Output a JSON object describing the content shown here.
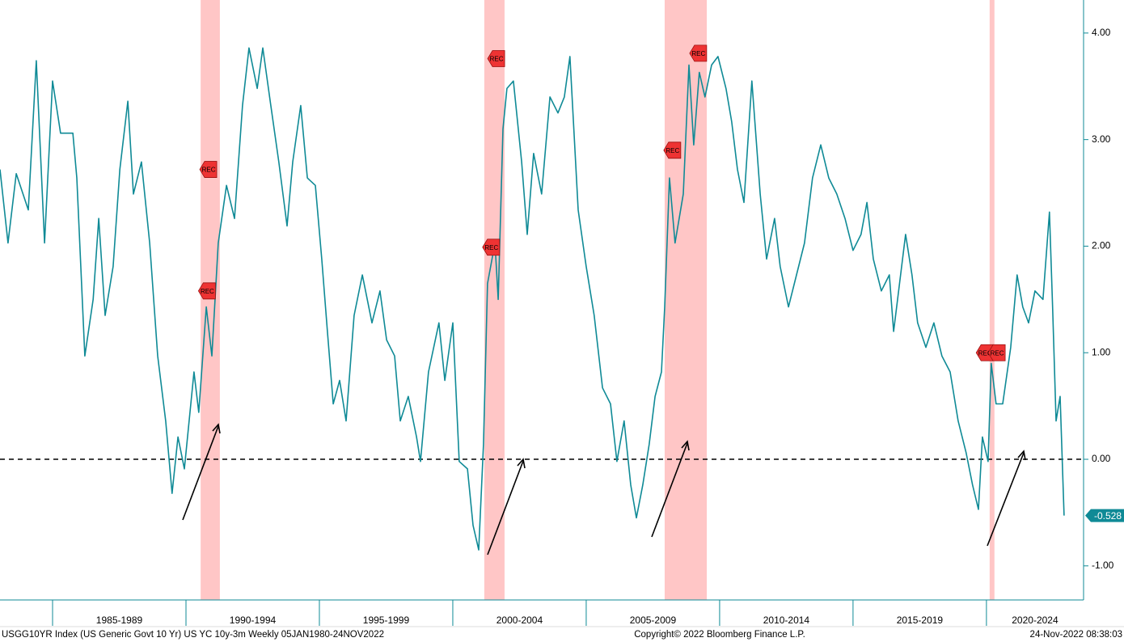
{
  "chart_data": {
    "type": "line",
    "footer_left": "USGG10YR Index (US Generic Govt 10 Yr) US YC 10y-3m  Weekly 05JAN1980-24NOV2022",
    "footer_center": "Copyright© 2022 Bloomberg Finance L.P.",
    "footer_right": "24-Nov-2022 08:38:03",
    "color": "#0f8a96",
    "x": [
      1983.03,
      1983.33,
      1983.64,
      1984.09,
      1984.39,
      1984.7,
      1985.0,
      1985.3,
      1985.76,
      1985.91,
      1986.21,
      1986.52,
      1986.73,
      1986.97,
      1987.27,
      1987.52,
      1987.82,
      1988.03,
      1988.33,
      1988.64,
      1988.94,
      1989.24,
      1989.48,
      1989.7,
      1989.94,
      1990.3,
      1990.48,
      1990.76,
      1990.97,
      1991.21,
      1991.52,
      1991.82,
      1992.12,
      1992.36,
      1992.67,
      1992.88,
      1993.18,
      1993.48,
      1993.79,
      1994.0,
      1994.3,
      1994.55,
      1994.85,
      1995.09,
      1995.3,
      1995.52,
      1995.76,
      1996.0,
      1996.3,
      1996.61,
      1996.97,
      1997.27,
      1997.52,
      1997.82,
      1998.03,
      1998.33,
      1998.64,
      1998.79,
      1999.09,
      1999.48,
      1999.7,
      2000.0,
      2000.24,
      2000.55,
      2000.76,
      2000.97,
      2001.15,
      2001.3,
      2001.58,
      2001.7,
      2001.88,
      2002.03,
      2002.27,
      2002.58,
      2002.79,
      2003.03,
      2003.33,
      2003.64,
      2003.94,
      2004.18,
      2004.39,
      2004.7,
      2005.0,
      2005.3,
      2005.61,
      2005.91,
      2006.15,
      2006.42,
      2006.67,
      2006.88,
      2007.12,
      2007.36,
      2007.58,
      2007.82,
      2007.94,
      2008.12,
      2008.33,
      2008.64,
      2008.85,
      2009.03,
      2009.24,
      2009.45,
      2009.7,
      2009.94,
      2010.24,
      2010.45,
      2010.67,
      2010.91,
      2011.21,
      2011.52,
      2011.76,
      2012.06,
      2012.27,
      2012.58,
      2012.88,
      2013.18,
      2013.48,
      2013.79,
      2014.09,
      2014.39,
      2014.7,
      2015.0,
      2015.3,
      2015.52,
      2015.76,
      2016.06,
      2016.36,
      2016.52,
      2016.67,
      2016.97,
      2017.21,
      2017.42,
      2017.73,
      2018.03,
      2018.33,
      2018.64,
      2018.94,
      2019.24,
      2019.48,
      2019.7,
      2019.85,
      2020.06,
      2020.18,
      2020.36,
      2020.61,
      2020.91,
      2021.15,
      2021.36,
      2021.58,
      2021.82,
      2022.12,
      2022.36,
      2022.48,
      2022.61,
      2022.76,
      2022.91
    ],
    "values": [
      2.72,
      2.03,
      2.68,
      2.34,
      3.74,
      2.03,
      3.55,
      3.06,
      3.06,
      2.64,
      0.97,
      1.5,
      2.26,
      1.35,
      1.81,
      2.72,
      3.36,
      2.49,
      2.79,
      2.03,
      0.97,
      0.36,
      -0.32,
      0.21,
      -0.09,
      0.82,
      0.44,
      1.43,
      0.97,
      2.03,
      2.57,
      2.26,
      3.32,
      3.86,
      3.48,
      3.86,
      3.32,
      2.79,
      2.19,
      2.79,
      3.32,
      2.64,
      2.57,
      1.88,
      1.2,
      0.52,
      0.74,
      0.36,
      1.35,
      1.73,
      1.28,
      1.58,
      1.12,
      0.97,
      0.36,
      0.59,
      0.21,
      -0.02,
      0.82,
      1.28,
      0.74,
      1.28,
      -0.02,
      -0.09,
      -0.62,
      -0.85,
      0.14,
      1.65,
      2.03,
      1.5,
      3.1,
      3.48,
      3.55,
      2.79,
      2.11,
      2.87,
      2.49,
      3.4,
      3.25,
      3.4,
      3.78,
      2.34,
      1.81,
      1.35,
      0.67,
      0.52,
      -0.02,
      0.36,
      -0.24,
      -0.55,
      -0.24,
      0.14,
      0.59,
      0.82,
      1.43,
      2.64,
      2.03,
      2.49,
      3.7,
      2.95,
      3.63,
      3.4,
      3.7,
      3.78,
      3.48,
      3.17,
      2.72,
      2.41,
      3.55,
      2.49,
      1.88,
      2.26,
      1.81,
      1.43,
      1.73,
      2.03,
      2.64,
      2.95,
      2.64,
      2.49,
      2.26,
      1.96,
      2.11,
      2.41,
      1.88,
      1.58,
      1.73,
      1.2,
      1.5,
      2.11,
      1.73,
      1.28,
      1.05,
      1.28,
      0.97,
      0.82,
      0.36,
      0.06,
      -0.24,
      -0.47,
      0.21,
      -0.02,
      0.9,
      0.52,
      0.52,
      1.05,
      1.73,
      1.43,
      1.28,
      1.58,
      1.5,
      2.32,
      1.43,
      0.36,
      0.59,
      -0.528
    ],
    "xlim": [
      1983.03,
      2023.64
    ],
    "xticks": [
      1985,
      1990,
      1995,
      2000,
      2005,
      2010,
      2015,
      2020
    ],
    "period_labels": [
      {
        "label": "1985-1989",
        "start": 1985,
        "end": 1990
      },
      {
        "label": "1990-1994",
        "start": 1990,
        "end": 1995
      },
      {
        "label": "1995-1999",
        "start": 1995,
        "end": 2000
      },
      {
        "label": "2000-2004",
        "start": 2000,
        "end": 2005
      },
      {
        "label": "2005-2009",
        "start": 2005,
        "end": 2010
      },
      {
        "label": "2010-2014",
        "start": 2010,
        "end": 2015
      },
      {
        "label": "2015-2019",
        "start": 2015,
        "end": 2020
      },
      {
        "label": "2020-2024",
        "start": 2020,
        "end": 2025
      }
    ],
    "ylim": [
      -1.32,
      4.31
    ],
    "yticks": [
      {
        "value": 4,
        "label": "4.00"
      },
      {
        "value": 3,
        "label": "3.00"
      },
      {
        "value": 2,
        "label": "2.00"
      },
      {
        "value": 1,
        "label": "1.00"
      },
      {
        "value": 0,
        "label": "0.00"
      },
      {
        "value": -1,
        "label": "-1.00"
      }
    ],
    "reference_line": 0,
    "recession_color": "#ffb3b3",
    "recessions": [
      [
        1990.55,
        1991.27
      ],
      [
        2001.18,
        2001.94
      ],
      [
        2007.94,
        2009.52
      ],
      [
        2020.12,
        2020.3
      ]
    ],
    "rec_markers": [
      {
        "label": "REC",
        "x": 1990.85,
        "y": 2.72
      },
      {
        "label": "REC",
        "x": 1990.8,
        "y": 1.58
      },
      {
        "label": "REC",
        "x": 2001.64,
        "y": 3.76
      },
      {
        "label": "REC",
        "x": 2001.45,
        "y": 1.99
      },
      {
        "label": "REC",
        "x": 2008.24,
        "y": 2.9
      },
      {
        "label": "REC",
        "x": 2009.21,
        "y": 3.81
      },
      {
        "label": "REC",
        "x": 2019.95,
        "y": 1.0
      },
      {
        "label": "REC",
        "x": 2020.4,
        "y": 1.0
      }
    ]
  }
}
